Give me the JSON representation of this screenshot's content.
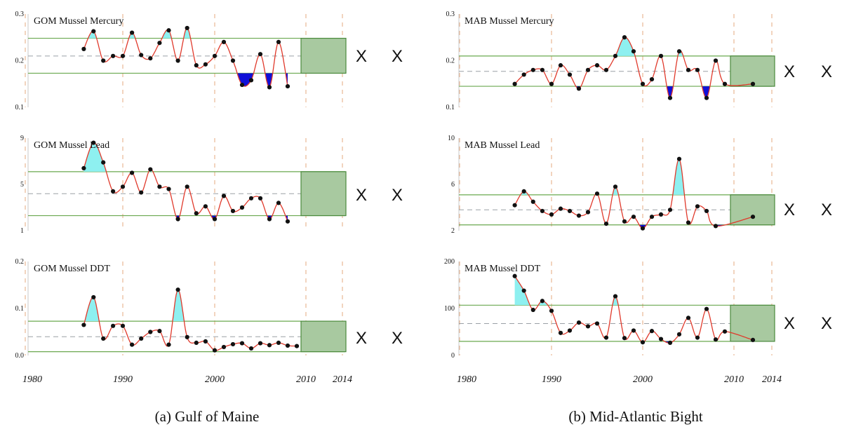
{
  "figure": {
    "captions": [
      "(a) Gulf of Maine",
      "(b) Mid-Atlantic Bight"
    ],
    "x_tick_labels": [
      "1980",
      "1990",
      "2000",
      "2010",
      "2014"
    ],
    "unavailable_marker": "X"
  },
  "colors": {
    "line": "#e0392b",
    "points": "#111111",
    "band": "#6aa84f",
    "forecast_box": "#a8c9a0",
    "mean": "#9aa0a6",
    "decade": "#e7b08a",
    "high_fill": "#8ef0f0",
    "low_fill": "#1010d8"
  },
  "chart_data": [
    {
      "type": "line",
      "title": "GOM Mussel Mercury",
      "xlim": [
        1980,
        2014
      ],
      "ylim": [
        0.1,
        0.3
      ],
      "yticks": [
        "0.1",
        "0.2",
        "0.3"
      ],
      "band_upper": 0.248,
      "band_lower": 0.173,
      "mean": 0.21,
      "x": [
        1986,
        1987,
        1988,
        1989,
        1990,
        1991,
        1992,
        1993,
        1994,
        1995,
        1996,
        1997,
        1998,
        1999,
        2000,
        2001,
        2002,
        2003,
        2004,
        2005,
        2006,
        2007,
        2008
      ],
      "y": [
        0.225,
        0.263,
        0.2,
        0.21,
        0.21,
        0.26,
        0.212,
        0.205,
        0.238,
        0.265,
        0.2,
        0.27,
        0.19,
        0.192,
        0.21,
        0.24,
        0.2,
        0.148,
        0.158,
        0.214,
        0.143,
        0.24,
        0.145
      ]
    },
    {
      "type": "line",
      "title": "GOM Mussel Lead",
      "xlim": [
        1980,
        2014
      ],
      "ylim": [
        1,
        9
      ],
      "yticks": [
        "1",
        "5",
        "9"
      ],
      "band_upper": 6.1,
      "band_lower": 2.3,
      "mean": 4.2,
      "x": [
        1986,
        1987,
        1988,
        1989,
        1990,
        1991,
        1992,
        1993,
        1994,
        1995,
        1996,
        1997,
        1998,
        1999,
        2000,
        2001,
        2002,
        2003,
        2004,
        2005,
        2006,
        2007,
        2008
      ],
      "y": [
        6.4,
        8.6,
        6.9,
        4.4,
        4.8,
        6.0,
        4.3,
        6.3,
        4.8,
        4.6,
        2.0,
        4.8,
        2.5,
        3.1,
        2.0,
        4.0,
        2.7,
        3.0,
        3.8,
        3.8,
        2.0,
        3.4,
        1.8
      ]
    },
    {
      "type": "line",
      "title": "GOM Mussel DDT",
      "xlim": [
        1980,
        2014
      ],
      "ylim": [
        0,
        0.2
      ],
      "yticks": [
        "0.0",
        "0.1",
        "0.2"
      ],
      "band_upper": 0.073,
      "band_lower": 0.008,
      "mean": 0.04,
      "x": [
        1986,
        1987,
        1988,
        1989,
        1990,
        1991,
        1992,
        1993,
        1994,
        1995,
        1996,
        1997,
        1998,
        1999,
        2000,
        2001,
        2002,
        2003,
        2004,
        2005,
        2006,
        2007,
        2008,
        2009
      ],
      "y": [
        0.065,
        0.124,
        0.036,
        0.063,
        0.063,
        0.023,
        0.036,
        0.05,
        0.052,
        0.023,
        0.14,
        0.039,
        0.027,
        0.03,
        0.011,
        0.018,
        0.024,
        0.026,
        0.015,
        0.026,
        0.022,
        0.027,
        0.021,
        0.02
      ]
    },
    {
      "type": "line",
      "title": "MAB Mussel Mercury",
      "xlim": [
        1980,
        2014
      ],
      "ylim": [
        0.1,
        0.3
      ],
      "yticks": [
        "0.1",
        "0.2",
        "0.3"
      ],
      "band_upper": 0.21,
      "band_lower": 0.145,
      "mean": 0.177,
      "x": [
        1986,
        1987,
        1988,
        1989,
        1990,
        1991,
        1992,
        1993,
        1994,
        1995,
        1996,
        1997,
        1998,
        1999,
        2000,
        2001,
        2002,
        2003,
        2004,
        2005,
        2006,
        2007,
        2008,
        2009,
        2012
      ],
      "y": [
        0.15,
        0.17,
        0.18,
        0.18,
        0.15,
        0.19,
        0.17,
        0.14,
        0.18,
        0.19,
        0.18,
        0.21,
        0.25,
        0.22,
        0.15,
        0.16,
        0.21,
        0.12,
        0.22,
        0.18,
        0.18,
        0.12,
        0.2,
        0.15,
        0.15
      ]
    },
    {
      "type": "line",
      "title": "MAB Mussel Lead",
      "xlim": [
        1980,
        2014
      ],
      "ylim": [
        2,
        10
      ],
      "yticks": [
        "2",
        "6",
        "10"
      ],
      "band_upper": 5.1,
      "band_lower": 2.5,
      "mean": 3.8,
      "x": [
        1986,
        1987,
        1988,
        1989,
        1990,
        1991,
        1992,
        1993,
        1994,
        1995,
        1996,
        1997,
        1998,
        1999,
        2000,
        2001,
        2002,
        2003,
        2004,
        2005,
        2006,
        2007,
        2008,
        2012
      ],
      "y": [
        4.2,
        5.4,
        4.5,
        3.7,
        3.4,
        3.9,
        3.7,
        3.3,
        3.6,
        5.2,
        2.6,
        5.8,
        2.8,
        3.2,
        2.2,
        3.2,
        3.4,
        3.8,
        8.2,
        2.7,
        4.1,
        3.7,
        2.4,
        3.2
      ]
    },
    {
      "type": "line",
      "title": "MAB Mussel DDT",
      "xlim": [
        1980,
        2014
      ],
      "ylim": [
        0,
        200
      ],
      "yticks": [
        "0",
        "100",
        "200"
      ],
      "band_upper": 107,
      "band_lower": 30,
      "mean": 68,
      "x": [
        1986,
        1987,
        1988,
        1989,
        1990,
        1991,
        1992,
        1993,
        1994,
        1995,
        1996,
        1997,
        1998,
        1999,
        2000,
        2001,
        2002,
        2003,
        2004,
        2005,
        2006,
        2007,
        2008,
        2009,
        2012
      ],
      "y": [
        169,
        138,
        97,
        116,
        95,
        48,
        53,
        70,
        62,
        68,
        38,
        126,
        37,
        53,
        28,
        52,
        35,
        27,
        45,
        80,
        38,
        99,
        34,
        51,
        33
      ]
    }
  ]
}
